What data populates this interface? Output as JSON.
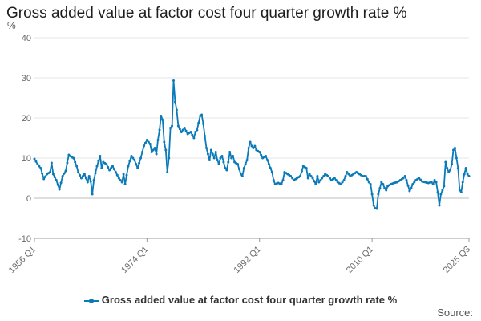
{
  "chart_data": {
    "type": "line",
    "title": "Gross added value at factor cost four quarter growth rate %",
    "ylabel": "%",
    "xlabel": "",
    "ylim": [
      -10,
      40
    ],
    "yticks": [
      -10,
      0,
      10,
      20,
      30,
      40
    ],
    "x_start": "1956 Q1",
    "x_end": "2025 Q3",
    "xtick_labels": [
      "1956 Q1",
      "1974 Q1",
      "1992 Q1",
      "2010 Q1",
      "2025 Q3"
    ],
    "xtick_index": [
      0,
      72,
      144,
      216,
      278
    ],
    "color": "#0a7ab8",
    "legend": "Gross added value at factor cost four quarter growth rate %",
    "source_label": "Source:",
    "series": [
      {
        "name": "Gross added value at factor cost four quarter growth rate %",
        "anchors": [
          [
            0,
            9.8
          ],
          [
            2,
            8.5
          ],
          [
            4,
            7.5
          ],
          [
            6,
            4.8
          ],
          [
            8,
            6.0
          ],
          [
            10,
            6.5
          ],
          [
            11,
            8.8
          ],
          [
            12,
            6.0
          ],
          [
            14,
            4.5
          ],
          [
            16,
            2.2
          ],
          [
            18,
            5.5
          ],
          [
            20,
            6.8
          ],
          [
            22,
            10.8
          ],
          [
            24,
            10.2
          ],
          [
            25,
            10.0
          ],
          [
            27,
            8.0
          ],
          [
            28,
            6.5
          ],
          [
            30,
            5.0
          ],
          [
            32,
            6.0
          ],
          [
            34,
            4.0
          ],
          [
            35,
            5.5
          ],
          [
            36,
            4.2
          ],
          [
            37,
            1.0
          ],
          [
            38,
            4.5
          ],
          [
            40,
            8.0
          ],
          [
            42,
            10.5
          ],
          [
            43,
            7.5
          ],
          [
            44,
            9.0
          ],
          [
            46,
            8.5
          ],
          [
            48,
            7.0
          ],
          [
            50,
            8.0
          ],
          [
            52,
            6.5
          ],
          [
            54,
            5.0
          ],
          [
            56,
            4.0
          ],
          [
            57,
            6.0
          ],
          [
            58,
            3.5
          ],
          [
            60,
            8.0
          ],
          [
            62,
            10.5
          ],
          [
            64,
            9.5
          ],
          [
            66,
            7.5
          ],
          [
            68,
            10.0
          ],
          [
            70,
            13.0
          ],
          [
            72,
            14.5
          ],
          [
            73,
            14.0
          ],
          [
            74,
            13.5
          ],
          [
            75,
            11.5
          ],
          [
            77,
            12.5
          ],
          [
            78,
            11.0
          ],
          [
            79,
            14.5
          ],
          [
            80,
            17.0
          ],
          [
            81,
            20.5
          ],
          [
            82,
            19.5
          ],
          [
            83,
            14.0
          ],
          [
            84,
            12.0
          ],
          [
            85,
            6.5
          ],
          [
            86,
            10.0
          ],
          [
            87,
            17.5
          ],
          [
            88,
            18.0
          ],
          [
            89,
            29.3
          ],
          [
            90,
            24.0
          ],
          [
            91,
            22.0
          ],
          [
            92,
            18.0
          ],
          [
            94,
            16.5
          ],
          [
            96,
            17.5
          ],
          [
            98,
            16.0
          ],
          [
            100,
            16.5
          ],
          [
            102,
            15.0
          ],
          [
            103,
            16.5
          ],
          [
            104,
            17.0
          ],
          [
            106,
            20.5
          ],
          [
            107,
            20.8
          ],
          [
            108,
            18.5
          ],
          [
            109,
            15.5
          ],
          [
            110,
            12.5
          ],
          [
            111,
            11.0
          ],
          [
            112,
            9.5
          ],
          [
            113,
            12.0
          ],
          [
            114,
            11.0
          ],
          [
            115,
            10.0
          ],
          [
            116,
            11.5
          ],
          [
            117,
            9.5
          ],
          [
            118,
            8.5
          ],
          [
            119,
            10.0
          ],
          [
            120,
            10.5
          ],
          [
            122,
            7.5
          ],
          [
            123,
            7.0
          ],
          [
            124,
            9.0
          ],
          [
            125,
            11.5
          ],
          [
            126,
            10.0
          ],
          [
            127,
            10.5
          ],
          [
            128,
            9.0
          ],
          [
            130,
            8.5
          ],
          [
            132,
            6.0
          ],
          [
            133,
            5.5
          ],
          [
            134,
            7.5
          ],
          [
            136,
            9.5
          ],
          [
            137,
            12.5
          ],
          [
            138,
            14.0
          ],
          [
            139,
            13.0
          ],
          [
            140,
            12.5
          ],
          [
            141,
            13.0
          ],
          [
            142,
            12.0
          ],
          [
            144,
            11.5
          ],
          [
            146,
            10.0
          ],
          [
            148,
            10.5
          ],
          [
            150,
            8.5
          ],
          [
            152,
            6.5
          ],
          [
            153,
            4.5
          ],
          [
            154,
            3.5
          ],
          [
            156,
            3.8
          ],
          [
            158,
            3.5
          ],
          [
            159,
            4.5
          ],
          [
            160,
            6.5
          ],
          [
            162,
            6.0
          ],
          [
            164,
            5.5
          ],
          [
            166,
            4.5
          ],
          [
            168,
            5.0
          ],
          [
            170,
            5.5
          ],
          [
            172,
            8.0
          ],
          [
            174,
            7.5
          ],
          [
            175,
            5.0
          ],
          [
            176,
            6.0
          ],
          [
            178,
            5.0
          ],
          [
            180,
            3.5
          ],
          [
            181,
            5.5
          ],
          [
            182,
            4.0
          ],
          [
            184,
            5.0
          ],
          [
            186,
            6.0
          ],
          [
            188,
            5.5
          ],
          [
            190,
            4.5
          ],
          [
            192,
            5.0
          ],
          [
            194,
            4.0
          ],
          [
            196,
            3.5
          ],
          [
            198,
            4.5
          ],
          [
            200,
            6.5
          ],
          [
            202,
            5.5
          ],
          [
            204,
            6.0
          ],
          [
            206,
            6.5
          ],
          [
            208,
            6.0
          ],
          [
            210,
            5.5
          ],
          [
            212,
            5.5
          ],
          [
            214,
            4.0
          ],
          [
            215,
            3.5
          ],
          [
            216,
            1.0
          ],
          [
            217,
            -1.8
          ],
          [
            218,
            -2.5
          ],
          [
            219,
            -2.6
          ],
          [
            220,
            1.0
          ],
          [
            221,
            2.5
          ],
          [
            222,
            4.0
          ],
          [
            223,
            3.5
          ],
          [
            224,
            2.5
          ],
          [
            225,
            2.0
          ],
          [
            226,
            3.0
          ],
          [
            228,
            3.5
          ],
          [
            230,
            3.8
          ],
          [
            232,
            4.0
          ],
          [
            234,
            4.5
          ],
          [
            236,
            5.0
          ],
          [
            237,
            5.5
          ],
          [
            238,
            4.5
          ],
          [
            240,
            1.8
          ],
          [
            241,
            2.5
          ],
          [
            242,
            3.5
          ],
          [
            244,
            4.5
          ],
          [
            246,
            5.0
          ],
          [
            248,
            4.2
          ],
          [
            250,
            4.0
          ],
          [
            252,
            3.8
          ],
          [
            254,
            4.0
          ],
          [
            255,
            3.5
          ],
          [
            256,
            4.5
          ],
          [
            257,
            4.0
          ],
          [
            258,
            1.5
          ],
          [
            259,
            -1.8
          ],
          [
            260,
            1.0
          ],
          [
            262,
            3.0
          ],
          [
            263,
            9.0
          ],
          [
            264,
            7.5
          ],
          [
            265,
            6.5
          ],
          [
            266,
            7.0
          ],
          [
            267,
            8.5
          ],
          [
            268,
            12.0
          ],
          [
            269,
            12.5
          ],
          [
            270,
            10.0
          ],
          [
            271,
            7.5
          ],
          [
            272,
            2.0
          ],
          [
            273,
            1.5
          ],
          [
            274,
            4.0
          ],
          [
            275,
            6.0
          ],
          [
            276,
            7.5
          ],
          [
            277,
            6.0
          ],
          [
            278,
            5.5
          ]
        ]
      }
    ]
  }
}
